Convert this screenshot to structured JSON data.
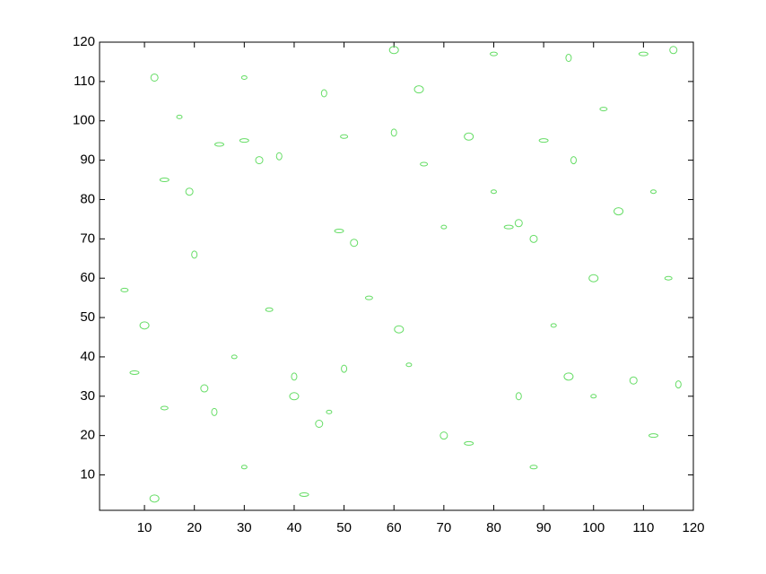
{
  "chart_data": {
    "type": "contour",
    "color": "#66dd66",
    "x": [
      17,
      12,
      25,
      46,
      50,
      65,
      70,
      52,
      49,
      60,
      66,
      75,
      80,
      85,
      90,
      96,
      102,
      105,
      112,
      116,
      110,
      95,
      80,
      60,
      30,
      19,
      14,
      20,
      6,
      10,
      28,
      22,
      8,
      24,
      14,
      12,
      30,
      45,
      42,
      50,
      55,
      61,
      63,
      70,
      75,
      85,
      88,
      95,
      100,
      108,
      112,
      117,
      115,
      100,
      92,
      88,
      83,
      40,
      35,
      40,
      47,
      33,
      30,
      37
    ],
    "y": [
      101,
      111,
      94,
      107,
      96,
      108,
      73,
      69,
      72,
      97,
      89,
      96,
      82,
      74,
      95,
      90,
      103,
      77,
      82,
      118,
      117,
      116,
      117,
      118,
      111,
      82,
      85,
      66,
      57,
      48,
      40,
      32,
      36,
      26,
      27,
      4,
      12,
      23,
      5,
      37,
      55,
      47,
      38,
      20,
      18,
      30,
      12,
      35,
      30,
      34,
      20,
      33,
      60,
      60,
      48,
      70,
      73,
      35,
      52,
      30,
      26,
      90,
      95,
      91
    ],
    "xlim": [
      1,
      120
    ],
    "ylim": [
      1,
      120
    ],
    "xticks": [
      10,
      20,
      30,
      40,
      50,
      60,
      70,
      80,
      90,
      100,
      110,
      120
    ],
    "yticks": [
      10,
      20,
      30,
      40,
      50,
      60,
      70,
      80,
      90,
      100,
      110,
      120
    ]
  }
}
